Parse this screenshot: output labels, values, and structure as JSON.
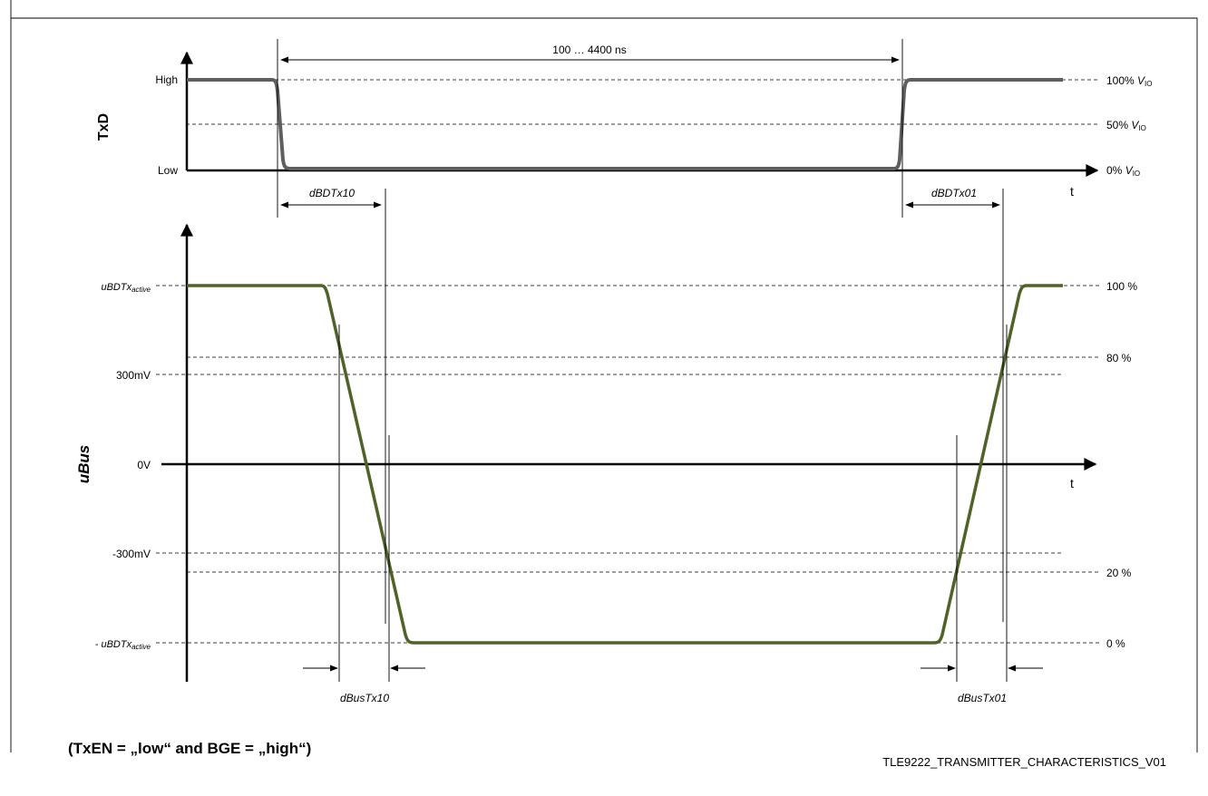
{
  "txd": {
    "signal_label": "TxD",
    "high_label": "High",
    "low_label": "Low",
    "pct_100": "100% ",
    "pct_50": "50% ",
    "pct_0": "0% ",
    "v_io": "V",
    "v_io_sub": "IO",
    "time_label": "t",
    "duration_label": "100 … 4400 ns",
    "dbdtx10": "dBDTx10",
    "dbdtx01": "dBDTx01"
  },
  "ubus": {
    "signal_label": "uBus",
    "active_pos_main": "uBDTx",
    "active_pos_sub": "active",
    "active_neg_main": "- uBDTx",
    "active_neg_sub": "active",
    "p300mv": "300mV",
    "zero_v": "0V",
    "n300mv": "-300mV",
    "pct_100": "100 %",
    "pct_80": "80 %",
    "pct_20": "20 %",
    "pct_0": "0 %",
    "time_label": "t",
    "dbustx10": "dBusTx10",
    "dbustx01": "dBusTx01"
  },
  "condition": "(TxEN = „low“   and   BGE = „high“)",
  "figure_id": "TLE9222_TRANSMITTER_CHARACTERISTICS_V01",
  "colors": {
    "txd_trace": "#5f5f5f",
    "ubus_trace": "#4f6228"
  }
}
